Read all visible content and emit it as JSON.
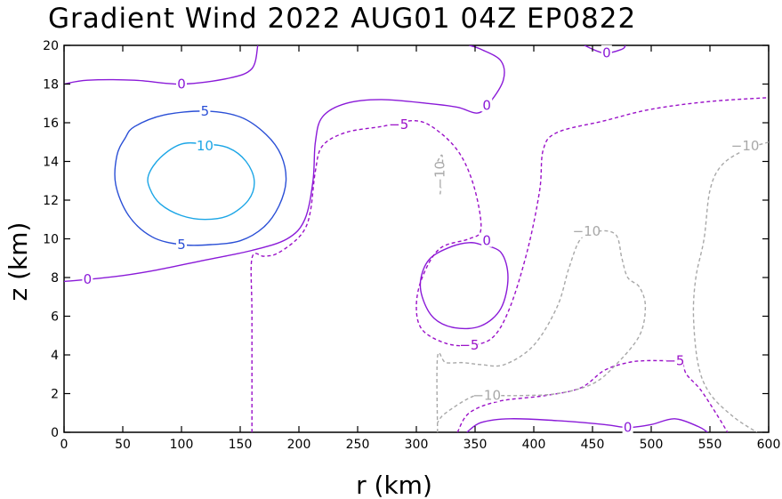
{
  "chart_data": {
    "type": "contour",
    "title": "Gradient Wind 2022 AUG01 04Z   EP0822",
    "xlabel": "r (km)",
    "ylabel": "z (km)",
    "xlim": [
      0,
      600
    ],
    "ylim": [
      0,
      20
    ],
    "xticks": [
      0,
      50,
      100,
      150,
      200,
      250,
      300,
      350,
      400,
      450,
      500,
      550,
      600
    ],
    "yticks": [
      0,
      2,
      4,
      6,
      8,
      10,
      12,
      14,
      16,
      18,
      20
    ],
    "grid": false,
    "colors": {
      "level_10": "#1ca6e6",
      "level_5": "#2a4fd6",
      "level_0": "#8a1ad8",
      "level_m5": "#9a10c8",
      "level_m10": "#a8a8a8"
    },
    "contours": [
      {
        "level": 10,
        "style": "solid",
        "color": "#1ca6e6",
        "closed": true,
        "points": [
          [
            82,
            14.2
          ],
          [
            100,
            14.9
          ],
          [
            120,
            14.9
          ],
          [
            140,
            14.7
          ],
          [
            155,
            14.0
          ],
          [
            162,
            13.0
          ],
          [
            157,
            12.0
          ],
          [
            140,
            11.2
          ],
          [
            120,
            11.0
          ],
          [
            100,
            11.2
          ],
          [
            82,
            11.8
          ],
          [
            73,
            12.6
          ],
          [
            72,
            13.3
          ]
        ],
        "labels": [
          {
            "text": "10",
            "x": 120,
            "y": 14.8
          }
        ]
      },
      {
        "level": 5,
        "style": "solid",
        "color": "#2a4fd6",
        "closed": true,
        "points": [
          [
            60,
            15.8
          ],
          [
            85,
            16.4
          ],
          [
            120,
            16.6
          ],
          [
            150,
            16.3
          ],
          [
            172,
            15.4
          ],
          [
            185,
            14.3
          ],
          [
            189,
            13.0
          ],
          [
            183,
            11.7
          ],
          [
            170,
            10.6
          ],
          [
            150,
            9.9
          ],
          [
            125,
            9.7
          ],
          [
            100,
            9.7
          ],
          [
            75,
            10.1
          ],
          [
            55,
            11.2
          ],
          [
            44,
            12.8
          ],
          [
            45,
            14.3
          ],
          [
            52,
            15.2
          ]
        ],
        "labels": [
          {
            "text": "5",
            "x": 120,
            "y": 16.6
          },
          {
            "text": "5",
            "x": 100,
            "y": 9.7
          }
        ]
      },
      {
        "level": 0,
        "style": "solid",
        "color": "#8a1ad8",
        "closed": false,
        "points": [
          [
            0,
            18.0
          ],
          [
            20,
            18.2
          ],
          [
            60,
            18.2
          ],
          [
            100,
            18.0
          ],
          [
            140,
            18.3
          ],
          [
            160,
            18.8
          ],
          [
            165,
            20.0
          ]
        ],
        "labels": [
          {
            "text": "0",
            "x": 100,
            "y": 18.0
          }
        ]
      },
      {
        "level": 0,
        "style": "solid",
        "color": "#8a1ad8",
        "closed": false,
        "points": [
          [
            0,
            7.8
          ],
          [
            20,
            7.9
          ],
          [
            50,
            8.1
          ],
          [
            80,
            8.4
          ],
          [
            120,
            8.9
          ],
          [
            160,
            9.4
          ],
          [
            190,
            10.0
          ],
          [
            205,
            11.0
          ],
          [
            212,
            13.0
          ],
          [
            214,
            15.0
          ],
          [
            220,
            16.3
          ],
          [
            240,
            17.0
          ],
          [
            270,
            17.2
          ],
          [
            310,
            17.0
          ],
          [
            335,
            16.8
          ],
          [
            352,
            16.5
          ],
          [
            362,
            17.0
          ],
          [
            374,
            18.2
          ],
          [
            372,
            19.2
          ],
          [
            355,
            19.8
          ],
          [
            345,
            20.0
          ]
        ],
        "labels": [
          {
            "text": "0",
            "x": 20,
            "y": 7.9
          },
          {
            "text": "0",
            "x": 360,
            "y": 16.9
          }
        ]
      },
      {
        "level": 0,
        "style": "solid",
        "color": "#8a1ad8",
        "closed": false,
        "points": [
          [
            443,
            20.0
          ],
          [
            460,
            19.6
          ],
          [
            475,
            19.8
          ],
          [
            478,
            20.0
          ]
        ],
        "labels": [
          {
            "text": "0",
            "x": 462,
            "y": 19.6
          }
        ]
      },
      {
        "level": 0,
        "style": "solid",
        "color": "#8a1ad8",
        "closed": true,
        "points": [
          [
            355,
            9.7
          ],
          [
            372,
            9.3
          ],
          [
            378,
            8.0
          ],
          [
            372,
            6.4
          ],
          [
            355,
            5.5
          ],
          [
            333,
            5.4
          ],
          [
            315,
            5.9
          ],
          [
            305,
            7.0
          ],
          [
            304,
            8.0
          ],
          [
            312,
            9.0
          ],
          [
            330,
            9.6
          ],
          [
            345,
            9.8
          ]
        ],
        "labels": [
          {
            "text": "0",
            "x": 360,
            "y": 9.9
          }
        ]
      },
      {
        "level": 0,
        "style": "solid",
        "color": "#8a1ad8",
        "closed": false,
        "points": [
          [
            343,
            0.0
          ],
          [
            355,
            0.5
          ],
          [
            380,
            0.7
          ],
          [
            420,
            0.6
          ],
          [
            460,
            0.4
          ],
          [
            480,
            0.25
          ],
          [
            500,
            0.4
          ],
          [
            520,
            0.7
          ],
          [
            540,
            0.3
          ],
          [
            548,
            0.0
          ]
        ],
        "labels": [
          {
            "text": "0",
            "x": 480,
            "y": 0.25
          }
        ]
      },
      {
        "level": -5,
        "style": "dashed",
        "color": "#9a10c8",
        "closed": false,
        "points": [
          [
            160,
            0.0
          ],
          [
            160,
            6.0
          ],
          [
            160,
            9.0
          ],
          [
            170,
            9.1
          ],
          [
            180,
            9.2
          ],
          [
            195,
            9.8
          ],
          [
            205,
            10.5
          ],
          [
            210,
            11.5
          ],
          [
            214,
            13.5
          ],
          [
            220,
            14.8
          ],
          [
            240,
            15.5
          ],
          [
            270,
            15.8
          ],
          [
            300,
            16.1
          ],
          [
            320,
            15.5
          ],
          [
            338,
            14.3
          ],
          [
            350,
            12.5
          ],
          [
            355,
            10.5
          ],
          [
            345,
            10.0
          ],
          [
            320,
            9.5
          ],
          [
            305,
            8.0
          ],
          [
            300,
            6.5
          ],
          [
            305,
            5.3
          ],
          [
            325,
            4.6
          ],
          [
            345,
            4.5
          ],
          [
            365,
            4.9
          ],
          [
            380,
            6.5
          ],
          [
            395,
            9.5
          ],
          [
            405,
            12.5
          ],
          [
            408,
            14.6
          ],
          [
            420,
            15.5
          ],
          [
            460,
            16.1
          ],
          [
            500,
            16.7
          ],
          [
            550,
            17.1
          ],
          [
            600,
            17.3
          ]
        ],
        "labels": [
          {
            "text": "−5",
            "x": 285,
            "y": 15.9
          },
          {
            "text": "−5",
            "x": 345,
            "y": 4.5
          }
        ]
      },
      {
        "level": -5,
        "style": "dashed",
        "color": "#9a10c8",
        "closed": false,
        "points": [
          [
            335,
            0.0
          ],
          [
            345,
            1.0
          ],
          [
            370,
            1.6
          ],
          [
            410,
            1.9
          ],
          [
            440,
            2.3
          ],
          [
            460,
            3.2
          ],
          [
            480,
            3.6
          ],
          [
            495,
            3.7
          ],
          [
            510,
            3.7
          ],
          [
            525,
            3.7
          ],
          [
            530,
            3.0
          ],
          [
            542,
            2.2
          ],
          [
            555,
            1.0
          ],
          [
            565,
            0.0
          ]
        ],
        "labels": [
          {
            "text": "−5",
            "x": 520,
            "y": 3.7
          }
        ]
      },
      {
        "level": -10,
        "style": "dashed",
        "color": "#a8a8a8",
        "closed": false,
        "points": [
          [
            318,
            0.0
          ],
          [
            318,
            3.9
          ],
          [
            325,
            3.6
          ],
          [
            340,
            3.6
          ],
          [
            355,
            3.5
          ],
          [
            375,
            3.5
          ],
          [
            400,
            4.5
          ],
          [
            420,
            6.5
          ],
          [
            430,
            8.5
          ],
          [
            440,
            10.0
          ],
          [
            455,
            10.4
          ],
          [
            470,
            10.2
          ],
          [
            475,
            9.0
          ],
          [
            480,
            8.0
          ],
          [
            490,
            7.5
          ],
          [
            495,
            6.5
          ],
          [
            490,
            5.0
          ],
          [
            470,
            3.5
          ],
          [
            450,
            2.5
          ],
          [
            420,
            2.0
          ],
          [
            390,
            1.9
          ],
          [
            370,
            1.9
          ],
          [
            350,
            1.9
          ],
          [
            325,
            1.0
          ],
          [
            318,
            0.5
          ]
        ],
        "labels": [
          {
            "text": "−10",
            "x": 445,
            "y": 10.4
          },
          {
            "text": "−10",
            "x": 360,
            "y": 1.9
          }
        ]
      },
      {
        "level": -10,
        "style": "dashed",
        "color": "#a8a8a8",
        "closed": false,
        "points": [
          [
            600,
            15.0
          ],
          [
            580,
            14.6
          ],
          [
            560,
            13.8
          ],
          [
            550,
            12.5
          ],
          [
            545,
            10.0
          ],
          [
            538,
            8.0
          ],
          [
            536,
            6.0
          ],
          [
            540,
            3.5
          ],
          [
            550,
            2.0
          ],
          [
            570,
            0.8
          ],
          [
            590,
            0.0
          ]
        ],
        "labels": [
          {
            "text": "−10",
            "x": 580,
            "y": 14.8
          }
        ]
      },
      {
        "level": -10,
        "style": "dashed",
        "color": "#a8a8a8",
        "closed": false,
        "points": [
          [
            318,
            14.0
          ],
          [
            322,
            14.3
          ],
          [
            322,
            13.2
          ],
          [
            320,
            12.2
          ]
        ],
        "labels": [
          {
            "text": "−10",
            "x": 320,
            "y": 13.3,
            "rotate": -90
          }
        ]
      }
    ]
  }
}
